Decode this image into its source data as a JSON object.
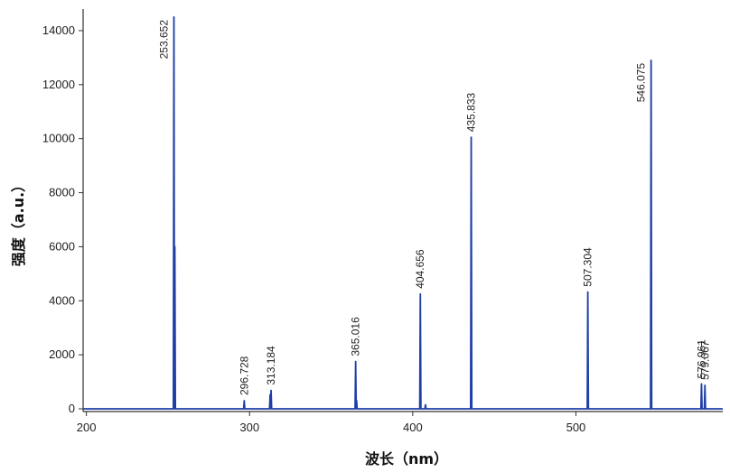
{
  "chart_data": {
    "type": "line",
    "xlabel": "波长（nm）",
    "ylabel": "强度（a.u.）",
    "xlim": [
      198,
      590
    ],
    "ylim": [
      -100,
      14800
    ],
    "x_ticks": [
      "200",
      "300",
      "400",
      "500"
    ],
    "y_ticks": [
      "0",
      "2000",
      "4000",
      "6000",
      "8000",
      "10000",
      "12000",
      "14000"
    ],
    "line_color": "#1f3fa6",
    "grid": false,
    "peaks": [
      {
        "x": 253.652,
        "y": 14500,
        "label": "253.652"
      },
      {
        "x": 296.728,
        "y": 300,
        "label": "296.728"
      },
      {
        "x": 313.184,
        "y": 680,
        "label": "313.184"
      },
      {
        "x": 365.016,
        "y": 1750,
        "label": "365.016"
      },
      {
        "x": 404.656,
        "y": 4250,
        "label": "404.656"
      },
      {
        "x": 435.833,
        "y": 10050,
        "label": "435.833"
      },
      {
        "x": 507.304,
        "y": 4320,
        "label": "507.304"
      },
      {
        "x": 546.075,
        "y": 12900,
        "label": "546.075"
      },
      {
        "x": 576.961,
        "y": 920,
        "label": "576.961"
      },
      {
        "x": 579.067,
        "y": 870,
        "label": "579.067"
      }
    ],
    "minor_peaks": [
      {
        "x": 254.2,
        "y": 6000
      },
      {
        "x": 312.6,
        "y": 520
      },
      {
        "x": 365.6,
        "y": 300
      },
      {
        "x": 407.8,
        "y": 150
      }
    ]
  }
}
